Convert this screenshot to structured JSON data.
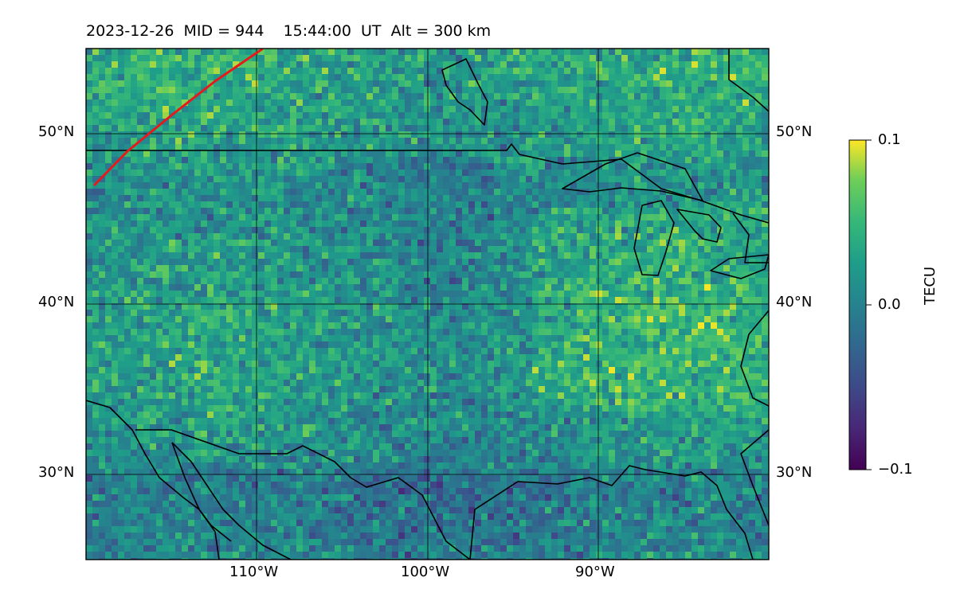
{
  "header": {
    "date": "2023-12-26",
    "mid": "MID = 944",
    "time": "15:44:00  UT",
    "alt": "Alt = 300 km"
  },
  "map": {
    "lon_range": [
      -120,
      -80
    ],
    "lat_range": [
      25,
      55
    ],
    "lat_labels": [
      "50°N",
      "40°N",
      "30°N"
    ],
    "lon_labels": [
      "110°W",
      "100°W",
      "90°W"
    ],
    "satellite_track_color": "#e41a1c"
  },
  "colorbar": {
    "label": "TECU",
    "ticks": [
      "0.1",
      "0.0",
      "−0.1"
    ],
    "range": [
      -0.1,
      0.1
    ],
    "colormap": "viridis"
  }
}
